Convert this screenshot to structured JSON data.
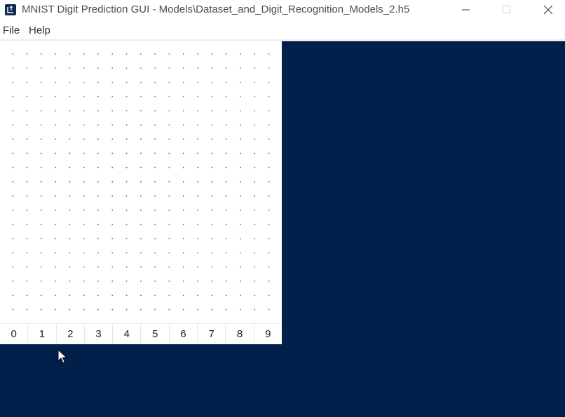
{
  "window": {
    "title": "MNIST Digit Prediction GUI - Models\\Dataset_and_Digit_Recognition_Models_2.h5",
    "icon": "app-window-icon",
    "controls": [
      "minimize-icon",
      "maximize-icon",
      "close-icon"
    ]
  },
  "menu": {
    "file_label": "File",
    "help_label": "Help"
  },
  "canvas": {
    "grid": "dotted"
  },
  "digits": {
    "labels": [
      "0",
      "1",
      "2",
      "3",
      "4",
      "5",
      "6",
      "7",
      "8",
      "9"
    ]
  },
  "colors": {
    "panel_background": "#00204b",
    "canvas_background": "#ffffff",
    "dot_color": "#6b6b6b"
  }
}
